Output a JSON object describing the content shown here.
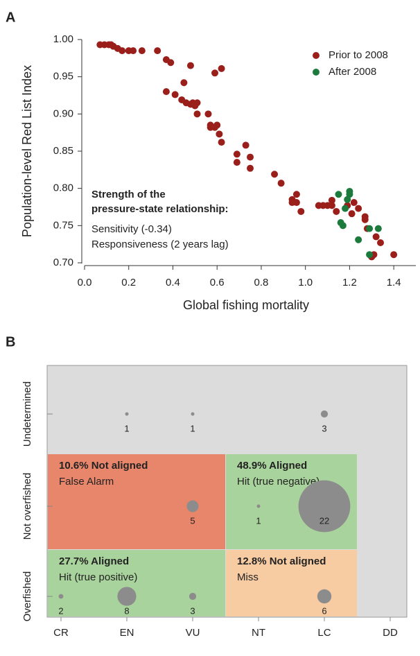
{
  "chart_data": [
    {
      "type": "scatter",
      "panel": "A",
      "xlabel": "Global fishing mortality",
      "ylabel": "Population-level Red List Index",
      "xlim": [
        0,
        1.5
      ],
      "ylim": [
        0.7,
        1.0
      ],
      "xticks": [
        {
          "value": 0,
          "label": "0.0"
        },
        {
          "value": 0.2,
          "label": "0.2"
        },
        {
          "value": 0.4,
          "label": "0.4"
        },
        {
          "value": 0.6,
          "label": "0.6"
        },
        {
          "value": 0.8,
          "label": "0.8"
        },
        {
          "value": 1.0,
          "label": "1.0"
        },
        {
          "value": 1.2,
          "label": "1.2"
        },
        {
          "value": 1.4,
          "label": "1.4"
        }
      ],
      "yticks": [
        {
          "value": 0.7,
          "label": "0.70"
        },
        {
          "value": 0.75,
          "label": "0.75"
        },
        {
          "value": 0.8,
          "label": "0.80"
        },
        {
          "value": 0.85,
          "label": "0.85"
        },
        {
          "value": 0.9,
          "label": "0.90"
        },
        {
          "value": 0.95,
          "label": "0.95"
        },
        {
          "value": 1.0,
          "label": "1.00"
        }
      ],
      "legend": "upper right",
      "annotation": {
        "title": [
          "Strength of the",
          "pressure-state relationship:"
        ],
        "lines": [
          "Sensitivity (-0.34)",
          "Responsiveness (2 years lag)"
        ]
      },
      "series": [
        {
          "name": "Prior to 2008",
          "color": "#9a1f1a",
          "x": [
            0.07,
            0.09,
            0.11,
            0.12,
            0.13,
            0.15,
            0.17,
            0.2,
            0.22,
            0.26,
            0.33,
            0.37,
            0.39,
            0.37,
            0.41,
            0.44,
            0.45,
            0.46,
            0.48,
            0.48,
            0.49,
            0.5,
            0.51,
            0.51,
            0.56,
            0.57,
            0.57,
            0.59,
            0.59,
            0.6,
            0.61,
            0.62,
            0.62,
            0.69,
            0.69,
            0.73,
            0.75,
            0.75,
            0.86,
            0.89,
            0.94,
            0.94,
            0.96,
            0.96,
            0.98,
            1.06,
            1.08,
            1.1,
            1.12,
            1.12,
            1.14,
            1.19,
            1.21,
            1.22,
            1.24,
            1.27,
            1.27,
            1.28,
            1.31,
            1.32,
            1.34,
            1.4,
            1.3
          ],
          "values": [
            0.993,
            0.993,
            0.993,
            0.993,
            0.991,
            0.988,
            0.985,
            0.985,
            0.985,
            0.985,
            0.985,
            0.973,
            0.969,
            0.93,
            0.926,
            0.919,
            0.942,
            0.915,
            0.965,
            0.913,
            0.915,
            0.911,
            0.915,
            0.9,
            0.9,
            0.885,
            0.882,
            0.955,
            0.882,
            0.885,
            0.873,
            0.961,
            0.862,
            0.846,
            0.835,
            0.858,
            0.842,
            0.827,
            0.819,
            0.807,
            0.785,
            0.781,
            0.792,
            0.781,
            0.769,
            0.777,
            0.777,
            0.777,
            0.784,
            0.777,
            0.769,
            0.777,
            0.766,
            0.781,
            0.773,
            0.762,
            0.758,
            0.746,
            0.711,
            0.735,
            0.727,
            0.711,
            0.708
          ]
        },
        {
          "name": "After 2008",
          "color": "#1b7a3c",
          "x": [
            1.15,
            1.16,
            1.17,
            1.18,
            1.19,
            1.2,
            1.2,
            1.24,
            1.29,
            1.29,
            1.33
          ],
          "values": [
            0.792,
            0.754,
            0.75,
            0.773,
            0.785,
            0.796,
            0.792,
            0.731,
            0.746,
            0.711,
            0.746
          ]
        }
      ]
    },
    {
      "type": "bubble",
      "panel": "B",
      "categories": [
        "CR",
        "EN",
        "VU",
        "NT",
        "LC",
        "DD"
      ],
      "rows": [
        "Overfished",
        "Not overfished",
        "Undetermined"
      ],
      "regions": [
        {
          "title": "10.6% Not aligned",
          "subtitle": "False Alarm",
          "color": "#e8866b"
        },
        {
          "title": "48.9% Aligned",
          "subtitle": "Hit (true negative)",
          "color": "#a9d39c"
        },
        {
          "title": "27.7% Aligned",
          "subtitle": "Hit (true positive)",
          "color": "#a9d39c"
        },
        {
          "title": "12.8% Not aligned",
          "subtitle": "Miss",
          "color": "#f8cca3"
        }
      ],
      "background": "#dcdcdc",
      "color": "#8c8c8c",
      "x": [
        "EN",
        "VU",
        "LC",
        "VU",
        "NT",
        "LC",
        "CR",
        "EN",
        "VU",
        "LC"
      ],
      "y": [
        "Undetermined",
        "Undetermined",
        "Undetermined",
        "Not overfished",
        "Not overfished",
        "Not overfished",
        "Overfished",
        "Overfished",
        "Overfished",
        "Overfished"
      ],
      "values": [
        1,
        1,
        3,
        5,
        1,
        22,
        2,
        8,
        3,
        6
      ]
    }
  ]
}
